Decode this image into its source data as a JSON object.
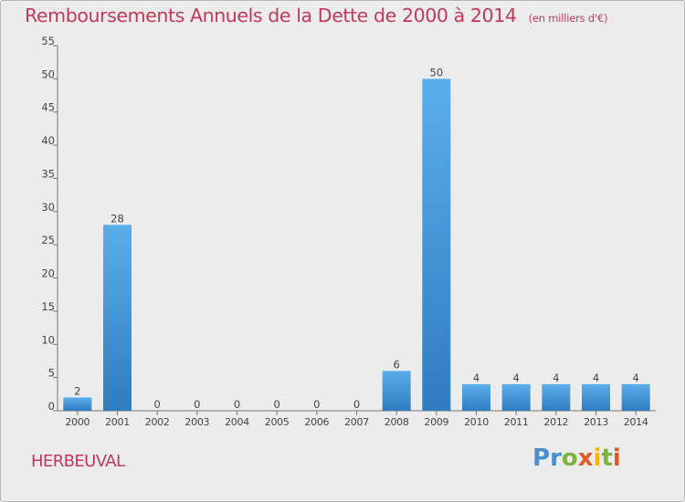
{
  "chart_data": {
    "type": "bar",
    "title": "Remboursements Annuels de la Dette de 2000 à 2014",
    "subtitle": "(en milliers d'€)",
    "categories": [
      "2000",
      "2001",
      "2002",
      "2003",
      "2004",
      "2005",
      "2006",
      "2007",
      "2008",
      "2009",
      "2010",
      "2011",
      "2012",
      "2013",
      "2014"
    ],
    "values": [
      2,
      28,
      0,
      0,
      0,
      0,
      0,
      0,
      6,
      50,
      4,
      4,
      4,
      4,
      4
    ],
    "data_labels": [
      "2",
      "28",
      "0",
      "0",
      "0",
      "0",
      "0",
      "0",
      "6",
      "50",
      "4",
      "4",
      "4",
      "4",
      "4"
    ],
    "y_ticks": [
      "0",
      "5",
      "10",
      "15",
      "20",
      "25",
      "30",
      "35",
      "40",
      "45",
      "50",
      "55"
    ],
    "ylim": [
      0,
      55
    ],
    "xlabel": "",
    "ylabel": "",
    "grid": false,
    "bar_color": "#3d8fd4",
    "title_color": "#c2395a"
  },
  "footer": {
    "place": "HERBEUVAL",
    "logo": "Proxiti",
    "logo_letters": [
      {
        "ch": "P",
        "color": "#4a8fcf"
      },
      {
        "ch": "r",
        "color": "#4a8fcf"
      },
      {
        "ch": "o",
        "color": "#7cb342"
      },
      {
        "ch": "x",
        "color": "#e05a24"
      },
      {
        "ch": "i",
        "color": "#f2b705"
      },
      {
        "ch": "t",
        "color": "#7cb342"
      },
      {
        "ch": "i",
        "color": "#e05a24"
      }
    ]
  }
}
